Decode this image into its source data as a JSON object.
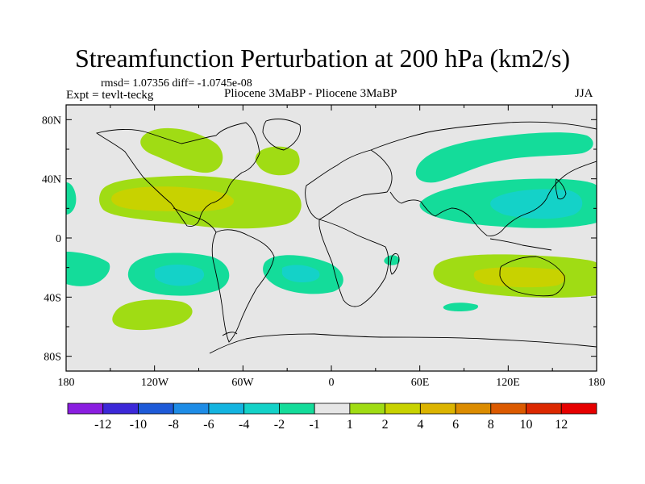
{
  "title": "Streamfunction Perturbation at 200 hPa (km2/s)",
  "stats": "rmsd= 1.07356 diff= -1.0745e-08",
  "expt": "Expt = tevlt-teckg",
  "subtitle": "Pliocene   3MaBP - Pliocene   3MaBP",
  "season": "JJA",
  "lat_ticks": [
    "80N",
    "40N",
    "0",
    "40S",
    "80S"
  ],
  "lon_ticks": [
    "180",
    "120W",
    "60W",
    "0",
    "60E",
    "120E",
    "180"
  ],
  "colorbar": {
    "labels": [
      "-12",
      "-10",
      "-8",
      "-6",
      "-4",
      "-2",
      "-1",
      "1",
      "2",
      "4",
      "6",
      "8",
      "10",
      "12"
    ],
    "colors": [
      "#8a1ee0",
      "#3c28d8",
      "#1e5ad8",
      "#1e8ce6",
      "#14b4e0",
      "#14d2c8",
      "#14dc9a",
      "#e6e6e6",
      "#a0dc14",
      "#c8d200",
      "#dcb400",
      "#dc8c00",
      "#dc5a00",
      "#dc2800",
      "#e60000"
    ]
  },
  "fill_colors": {
    "ocean": "#e6e6e6",
    "pos_1_2": "#a0dc14",
    "pos_2_4": "#c8d200",
    "neg_1_2": "#14dc9a",
    "neg_2_4": "#14d2c8"
  }
}
